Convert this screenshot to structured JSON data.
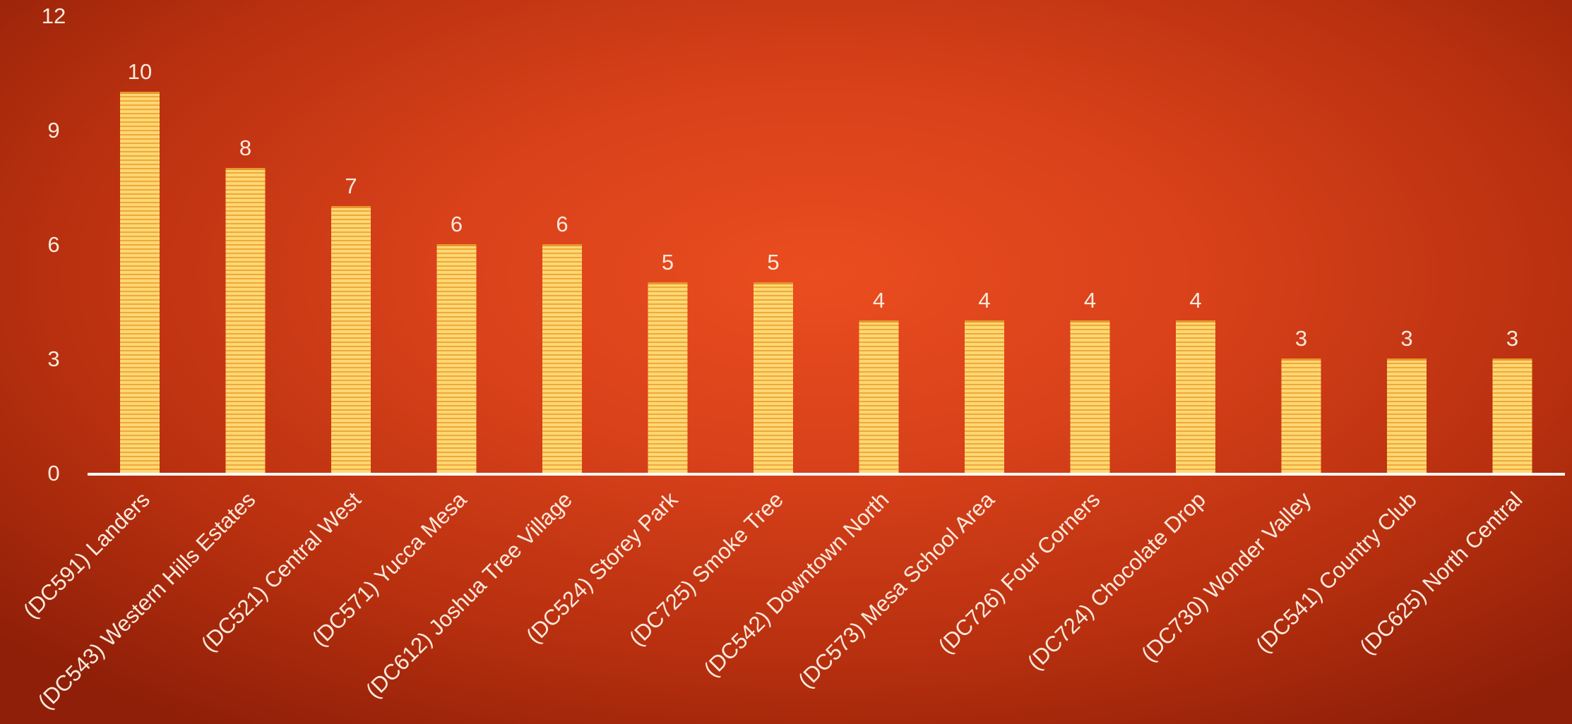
{
  "chart_data": {
    "type": "bar",
    "categories": [
      "(DC591) Landers",
      "(DC543) Western Hills Estates",
      "(DC521) Central West",
      "(DC571) Yucca Mesa",
      "(DC612) Joshua Tree Village",
      "(DC524) Storey Park",
      "(DC725) Smoke Tree",
      "(DC542) Downtown North",
      "(DC573) Mesa School Area",
      "(DC726) Four Corners",
      "(DC724) Chocolate Drop",
      "(DC730) Wonder Valley",
      "(DC541) Country Club",
      "(DC625) North Central"
    ],
    "values": [
      10,
      8,
      7,
      6,
      6,
      5,
      5,
      4,
      4,
      4,
      4,
      3,
      3,
      3
    ],
    "ylim": [
      0,
      12
    ],
    "yticks": [
      "0",
      "3",
      "6",
      "9",
      "12"
    ],
    "grid": false,
    "data_labels": true,
    "colors": {
      "bar_fill": "#fbd36a",
      "bar_stripe": "#f2a93b",
      "axis_line": "#ffffff",
      "text": "#fbe9dd"
    }
  }
}
